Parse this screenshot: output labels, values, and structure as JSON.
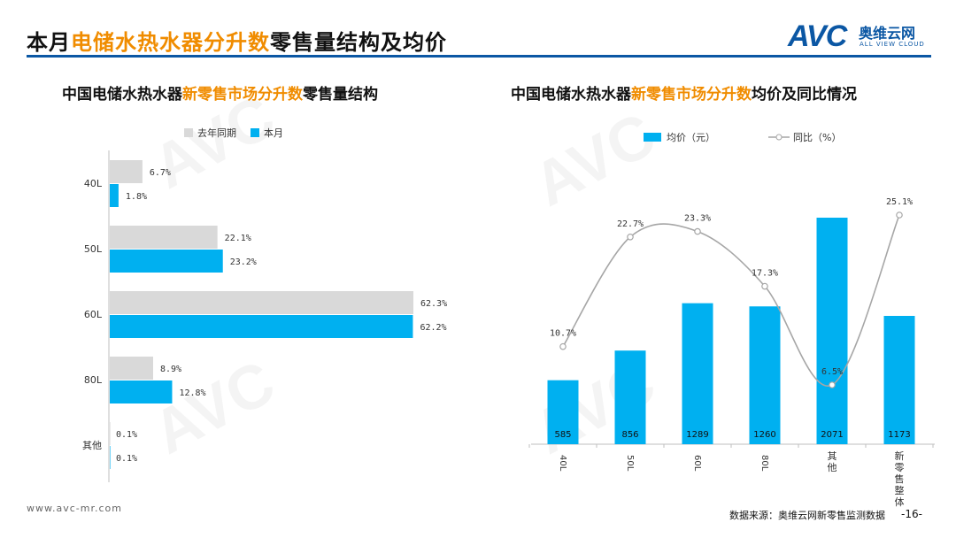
{
  "header": {
    "title_parts": [
      "本月",
      "电储水热水器分升数",
      "零售量结构及均价"
    ],
    "logo": {
      "mark": "AVC",
      "cn": "奥维云网",
      "en": "ALL VIEW CLOUD"
    }
  },
  "left_chart": {
    "title_parts": [
      "中国电储水热水器",
      "新零售市场分升数",
      "零售量结构"
    ]
  },
  "right_chart": {
    "title_parts": [
      "中国电储水热水器",
      "新零售市场分升数",
      "均价及同比情况"
    ]
  },
  "chart_data": [
    {
      "type": "bar",
      "orientation": "horizontal",
      "title": "中国电储水热水器新零售市场分升数零售量结构",
      "categories": [
        "40L",
        "50L",
        "60L",
        "80L",
        "其他"
      ],
      "series": [
        {
          "name": "去年同期",
          "values": [
            6.7,
            22.1,
            62.3,
            8.9,
            0.1
          ],
          "labels": [
            "6.7%",
            "22.1%",
            "62.3%",
            "8.9%",
            "0.1%"
          ],
          "color": "#d9d9d9"
        },
        {
          "name": "本月",
          "values": [
            1.8,
            23.2,
            62.2,
            12.8,
            0.1
          ],
          "labels": [
            "1.8%",
            "23.2%",
            "62.2%",
            "12.8%",
            "0.1%"
          ],
          "color": "#00b0f0"
        }
      ],
      "xlim": [
        0,
        70
      ]
    },
    {
      "type": "bar",
      "title": "中国电储水热水器新零售市场分升数均价及同比情况",
      "categories": [
        "40L",
        "50L",
        "60L",
        "80L",
        "其他",
        "新零售整体"
      ],
      "series": [
        {
          "name": "均价（元）",
          "type": "bar",
          "values": [
            585,
            856,
            1289,
            1260,
            2071,
            1173
          ],
          "labels": [
            "585",
            "856",
            "1289",
            "1260",
            "2071",
            "1173"
          ],
          "color": "#00b0f0"
        },
        {
          "name": "同比（%）",
          "type": "line",
          "values": [
            10.7,
            22.7,
            23.3,
            17.3,
            6.5,
            25.1
          ],
          "labels": [
            "10.7%",
            "22.7%",
            "23.3%",
            "17.3%",
            "6.5%",
            "25.1%"
          ],
          "color": "#a6a6a6"
        }
      ],
      "ylim_bar": [
        0,
        2400
      ],
      "ylim_line": [
        -12,
        32
      ]
    }
  ],
  "footer": {
    "url": "www.avc-mr.com",
    "source": "数据来源：奥维云网新零售监测数据",
    "page": "-16-"
  }
}
